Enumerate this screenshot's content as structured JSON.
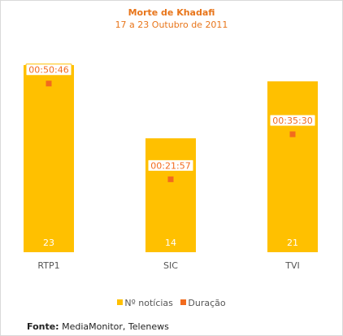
{
  "title": "Morte de Khadafi",
  "subtitle": "17 a 23 Outubro de 2011",
  "source_label": "Fonte:",
  "source_text": "MediaMonitor, Telenews",
  "colors": {
    "bar": "#ffc000",
    "marker": "#f26b1d",
    "title": "#e8751a"
  },
  "legend": [
    {
      "label": "Nº notícias",
      "color": "#ffc000"
    },
    {
      "label": "Duração",
      "color": "#f26b1d"
    }
  ],
  "chart_data": {
    "type": "bar",
    "title": "Morte de Khadafi",
    "subtitle": "17 a 23 Outubro de 2011",
    "categories": [
      "RTP1",
      "SIC",
      "TVI"
    ],
    "series": [
      {
        "name": "Nº notícias",
        "type": "bar",
        "values": [
          23,
          14,
          21
        ]
      },
      {
        "name": "Duração",
        "type": "scatter",
        "values": [
          "00:50:46",
          "00:21:57",
          "00:35:30"
        ],
        "seconds": [
          3046,
          1317,
          2130
        ]
      }
    ],
    "bar_ylim": [
      0,
      24.5
    ],
    "duration_ylim_seconds": [
      0,
      3600
    ],
    "grid": false,
    "legend_position": "bottom"
  }
}
